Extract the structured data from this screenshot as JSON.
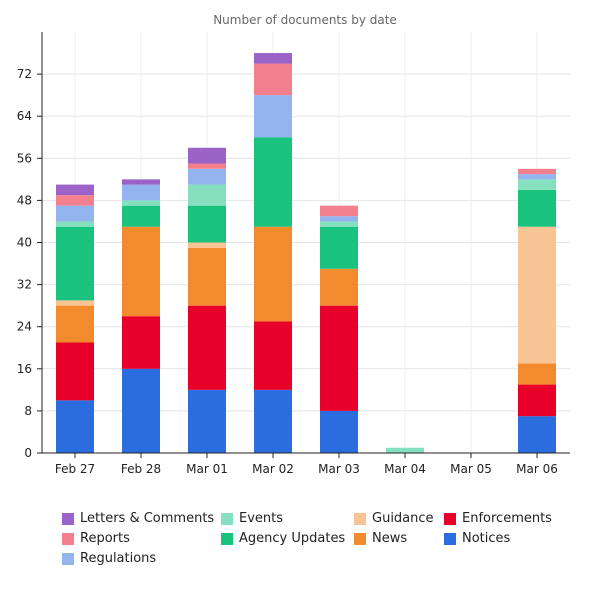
{
  "chart_data": {
    "type": "bar",
    "stacked": true,
    "title": "Number of documents by date",
    "xlabel": "",
    "ylabel": "",
    "categories": [
      "Feb 27",
      "Feb 28",
      "Mar 01",
      "Mar 02",
      "Mar 03",
      "Mar 04",
      "Mar 05",
      "Mar 06"
    ],
    "ylim": [
      0,
      80
    ],
    "yticks": [
      0,
      8,
      16,
      24,
      32,
      40,
      48,
      56,
      64,
      72
    ],
    "grid": true,
    "legend_position": "bottom",
    "series": [
      {
        "name": "Notices",
        "color": "#2b6ddf",
        "values": [
          10,
          16,
          12,
          12,
          8,
          0,
          0,
          7
        ]
      },
      {
        "name": "Enforcements",
        "color": "#e8002b",
        "values": [
          11,
          10,
          16,
          13,
          20,
          0,
          0,
          6
        ]
      },
      {
        "name": "News",
        "color": "#f28a2e",
        "values": [
          7,
          17,
          11,
          18,
          7,
          0,
          0,
          4
        ]
      },
      {
        "name": "Guidance",
        "color": "#f8c493",
        "values": [
          1,
          0,
          1,
          0,
          0,
          0,
          0,
          26
        ]
      },
      {
        "name": "Agency Updates",
        "color": "#1ac27f",
        "values": [
          14,
          4,
          7,
          17,
          8,
          0,
          0,
          7
        ]
      },
      {
        "name": "Events",
        "color": "#86e0c0",
        "values": [
          1,
          1,
          4,
          0,
          1,
          1,
          0,
          2
        ]
      },
      {
        "name": "Regulations",
        "color": "#93b4ee",
        "values": [
          3,
          3,
          3,
          8,
          1,
          0,
          0,
          1
        ]
      },
      {
        "name": "Reports",
        "color": "#f3808f",
        "values": [
          2,
          0,
          1,
          6,
          2,
          0,
          0,
          1
        ]
      },
      {
        "name": "Letters & Comments",
        "color": "#9b62c7",
        "values": [
          2,
          1,
          3,
          2,
          0,
          0,
          0,
          0
        ]
      }
    ],
    "legend_order": [
      "Letters & Comments",
      "Events",
      "Guidance",
      "Enforcements",
      "Reports",
      "Agency Updates",
      "News",
      "Notices",
      "Regulations"
    ]
  }
}
